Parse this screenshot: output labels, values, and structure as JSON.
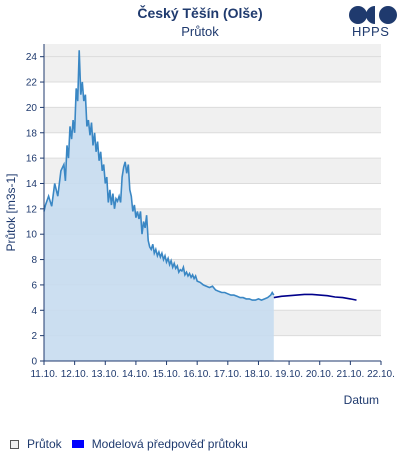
{
  "header": {
    "title": "Český Těšín (Olše)",
    "subtitle": "Průtok",
    "logo_text": "HPPS"
  },
  "legend": {
    "observed_label": "Průtok",
    "model_label": "Modelová předpověď průtoku"
  },
  "chart_data": {
    "type": "area",
    "xlabel": "Datum",
    "ylabel": "Průtok [m3s-1]",
    "xlim": [
      11.0,
      22.0
    ],
    "ylim": [
      0,
      25
    ],
    "x_ticks": [
      11,
      12,
      13,
      14,
      15,
      16,
      17,
      18,
      19,
      20,
      21,
      22
    ],
    "x_tick_labels": [
      "11.10.",
      "12.10.",
      "13.10.",
      "14.10.",
      "15.10.",
      "16.10.",
      "17.10.",
      "18.10.",
      "19.10.",
      "20.10.",
      "21.10.",
      "22.10."
    ],
    "y_ticks": [
      0,
      2,
      4,
      6,
      8,
      10,
      12,
      14,
      16,
      18,
      20,
      22,
      24
    ],
    "grid": true,
    "legend_position": "bottom-left",
    "colors": {
      "observed_line": "#3a87c4",
      "observed_fill": "#c6dcf0",
      "model_line": "#00008b",
      "band_gray": "#f0f0f0",
      "axis": "#1f3a6e"
    },
    "series": [
      {
        "name": "Průtok",
        "x": [
          11.0,
          11.05,
          11.15,
          11.25,
          11.35,
          11.45,
          11.55,
          11.65,
          11.7,
          11.75,
          11.8,
          11.85,
          11.9,
          11.95,
          12.0,
          12.05,
          12.1,
          12.15,
          12.2,
          12.25,
          12.3,
          12.35,
          12.4,
          12.45,
          12.5,
          12.55,
          12.6,
          12.65,
          12.7,
          12.75,
          12.8,
          12.85,
          12.9,
          12.95,
          13.0,
          13.05,
          13.1,
          13.15,
          13.2,
          13.25,
          13.3,
          13.35,
          13.4,
          13.45,
          13.5,
          13.55,
          13.6,
          13.65,
          13.7,
          13.75,
          13.8,
          13.85,
          13.9,
          13.95,
          14.0,
          14.05,
          14.1,
          14.15,
          14.2,
          14.25,
          14.3,
          14.35,
          14.4,
          14.45,
          14.5,
          14.55,
          14.6,
          14.65,
          14.7,
          14.75,
          14.8,
          14.85,
          14.9,
          14.95,
          15.0,
          15.05,
          15.1,
          15.15,
          15.2,
          15.25,
          15.3,
          15.35,
          15.4,
          15.45,
          15.5,
          15.55,
          15.6,
          15.65,
          15.7,
          15.75,
          15.8,
          15.85,
          15.9,
          15.95,
          16.0,
          16.1,
          16.2,
          16.3,
          16.4,
          16.5,
          16.6,
          16.7,
          16.8,
          16.9,
          17.0,
          17.1,
          17.2,
          17.3,
          17.4,
          17.5,
          17.6,
          17.7,
          17.8,
          17.9,
          18.0,
          18.1,
          18.2,
          18.3,
          18.4,
          18.45,
          18.5
        ],
        "values": [
          11.8,
          12.3,
          13.0,
          12.2,
          14.0,
          13.0,
          15.0,
          15.5,
          14.2,
          17.0,
          16.0,
          18.5,
          17.5,
          19.0,
          18.0,
          21.5,
          20.5,
          24.5,
          21.0,
          22.0,
          20.5,
          21.0,
          18.5,
          19.0,
          17.8,
          18.8,
          17.0,
          18.0,
          16.5,
          17.3,
          15.8,
          16.5,
          15.0,
          15.5,
          14.0,
          14.5,
          12.5,
          13.5,
          12.3,
          13.2,
          12.0,
          12.8,
          12.6,
          13.0,
          12.5,
          14.5,
          15.3,
          15.7,
          14.8,
          15.5,
          13.5,
          13.0,
          11.8,
          12.3,
          11.3,
          11.8,
          11.2,
          11.8,
          10.0,
          11.0,
          10.5,
          11.5,
          9.5,
          9.0,
          8.8,
          9.2,
          8.5,
          8.8,
          8.3,
          8.6,
          8.2,
          8.5,
          8.0,
          8.3,
          7.8,
          8.1,
          7.6,
          7.9,
          7.4,
          7.7,
          7.3,
          7.5,
          7.0,
          7.2,
          7.1,
          7.4,
          6.8,
          7.0,
          6.7,
          6.9,
          6.6,
          6.8,
          6.5,
          6.7,
          6.3,
          6.2,
          6.0,
          5.9,
          5.8,
          5.9,
          5.6,
          5.5,
          5.4,
          5.4,
          5.3,
          5.2,
          5.2,
          5.1,
          5.0,
          5.0,
          4.9,
          4.9,
          4.8,
          4.8,
          4.9,
          4.8,
          4.9,
          5.0,
          5.2,
          5.4,
          5.2
        ]
      },
      {
        "name": "Modelová předpověď průtoku",
        "x": [
          18.5,
          18.75,
          19.0,
          19.25,
          19.5,
          19.75,
          20.0,
          20.25,
          20.5,
          20.75,
          21.0,
          21.2
        ],
        "values": [
          5.0,
          5.1,
          5.15,
          5.2,
          5.25,
          5.25,
          5.2,
          5.15,
          5.05,
          5.0,
          4.9,
          4.8
        ]
      }
    ]
  }
}
